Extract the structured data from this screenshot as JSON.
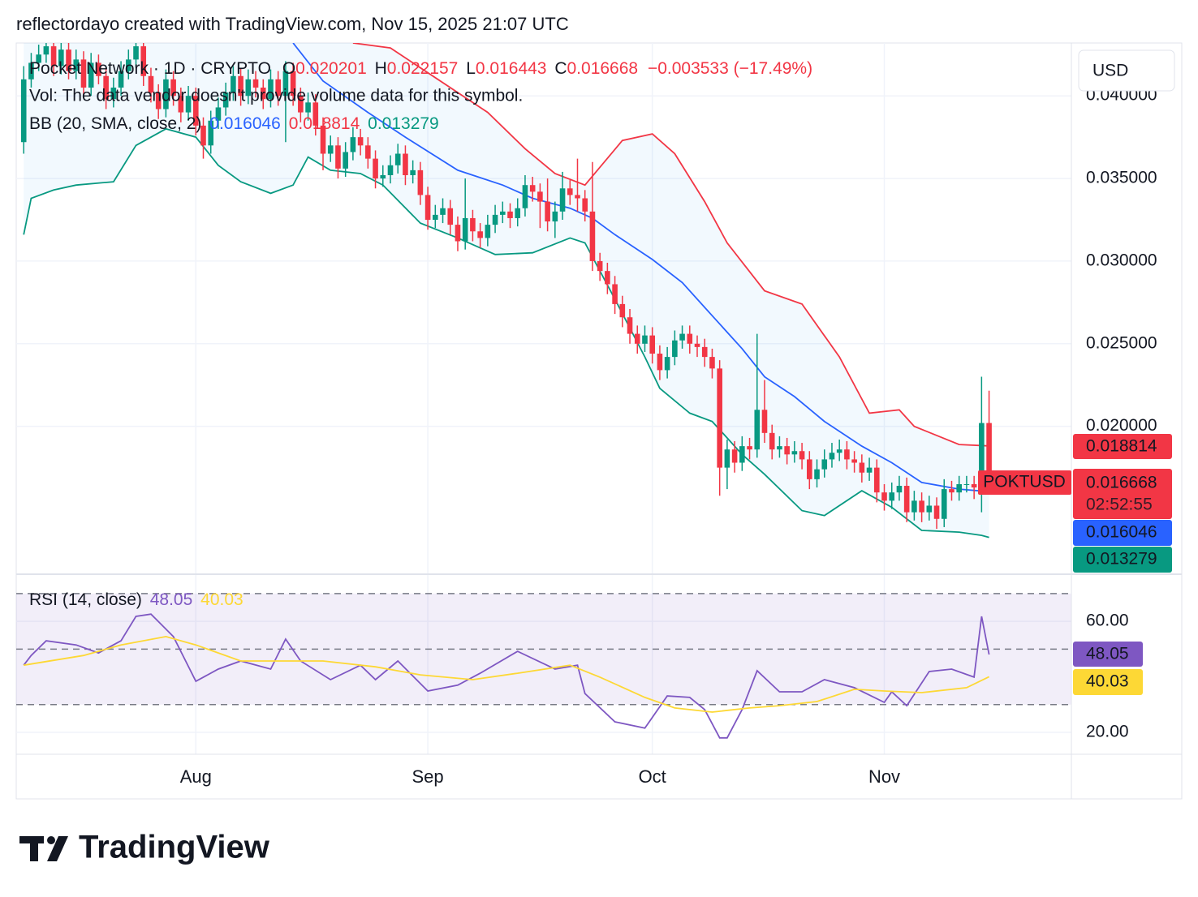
{
  "header": "reflectordayo created with TradingView.com, Nov 15, 2025 21:07 UTC",
  "footer": "TradingView",
  "chart_data": {
    "type": "candlestick",
    "title": "Pocket Network · 1D · CRYPTO",
    "ohlc_prefixes": [
      "O",
      "H",
      "L",
      "C"
    ],
    "change_label": "−0.003533 (−17.49%)",
    "volume_note": "Vol: The data vendor doesn't provide volume data for this symbol.",
    "currency": "USD",
    "symbol": "POKTUSD",
    "countdown": "02:52:55",
    "up_color": "#089981",
    "down_color": "#f23645",
    "grid": true,
    "xlim": [
      -1,
      140
    ],
    "xticks": [
      {
        "value": 23,
        "label": "Aug"
      },
      {
        "value": 54,
        "label": "Sep"
      },
      {
        "value": 84,
        "label": "Oct"
      },
      {
        "value": 115,
        "label": "Nov"
      }
    ],
    "ylim": [
      0.0111,
      0.0432
    ],
    "yticks": [
      {
        "value": 0.02,
        "label": "0.020000"
      },
      {
        "value": 0.025,
        "label": "0.025000"
      },
      {
        "value": 0.03,
        "label": "0.030000"
      },
      {
        "value": 0.035,
        "label": "0.035000"
      },
      {
        "value": 0.04,
        "label": "0.040000"
      }
    ],
    "candles": [
      [
        0.0372,
        0.0418,
        0.0365,
        0.041
      ],
      [
        0.041,
        0.0426,
        0.0405,
        0.042
      ],
      [
        0.042,
        0.0431,
        0.0415,
        0.0425
      ],
      [
        0.0425,
        0.0436,
        0.042,
        0.043
      ],
      [
        0.043,
        0.0435,
        0.0412,
        0.0418
      ],
      [
        0.0418,
        0.0434,
        0.0413,
        0.0428
      ],
      [
        0.0428,
        0.0433,
        0.041,
        0.0415
      ],
      [
        0.0415,
        0.0428,
        0.041,
        0.0422
      ],
      [
        0.0422,
        0.0427,
        0.0399,
        0.0405
      ],
      [
        0.0405,
        0.0426,
        0.04,
        0.042
      ],
      [
        0.042,
        0.0425,
        0.0407,
        0.0412
      ],
      [
        0.0412,
        0.0417,
        0.0392,
        0.0398
      ],
      [
        0.0398,
        0.0411,
        0.0393,
        0.0405
      ],
      [
        0.0405,
        0.0421,
        0.04,
        0.0415
      ],
      [
        0.0415,
        0.0428,
        0.041,
        0.0422
      ],
      [
        0.0422,
        0.0436,
        0.0417,
        0.043
      ],
      [
        0.043,
        0.0435,
        0.0406,
        0.0412
      ],
      [
        0.0412,
        0.0417,
        0.0396,
        0.0402
      ],
      [
        0.0402,
        0.0407,
        0.0386,
        0.0392
      ],
      [
        0.0392,
        0.0416,
        0.0387,
        0.041
      ],
      [
        0.041,
        0.0415,
        0.0394,
        0.04
      ],
      [
        0.04,
        0.0405,
        0.0384,
        0.039
      ],
      [
        0.039,
        0.0406,
        0.0385,
        0.04
      ],
      [
        0.04,
        0.0405,
        0.0376,
        0.0382
      ],
      [
        0.0382,
        0.0387,
        0.0362,
        0.037
      ],
      [
        0.037,
        0.0391,
        0.0365,
        0.0385
      ],
      [
        0.0385,
        0.0399,
        0.038,
        0.0393
      ],
      [
        0.0393,
        0.0408,
        0.0388,
        0.0402
      ],
      [
        0.0402,
        0.0418,
        0.0397,
        0.0412
      ],
      [
        0.0412,
        0.0417,
        0.0394,
        0.04
      ],
      [
        0.04,
        0.0416,
        0.0395,
        0.041
      ],
      [
        0.041,
        0.0415,
        0.0399,
        0.0405
      ],
      [
        0.0405,
        0.041,
        0.0392,
        0.0398
      ],
      [
        0.0398,
        0.0416,
        0.0393,
        0.041
      ],
      [
        0.041,
        0.0415,
        0.0394,
        0.04
      ],
      [
        0.04,
        0.0421,
        0.0372,
        0.0415
      ],
      [
        0.0415,
        0.042,
        0.0394,
        0.04
      ],
      [
        0.04,
        0.0405,
        0.0384,
        0.039
      ],
      [
        0.039,
        0.0402,
        0.0385,
        0.0396
      ],
      [
        0.0396,
        0.0401,
        0.0376,
        0.0382
      ],
      [
        0.0382,
        0.0387,
        0.0355,
        0.0365
      ],
      [
        0.0365,
        0.0376,
        0.036,
        0.037
      ],
      [
        0.037,
        0.0375,
        0.035,
        0.0356
      ],
      [
        0.0356,
        0.0372,
        0.0351,
        0.0366
      ],
      [
        0.0366,
        0.0381,
        0.0361,
        0.0375
      ],
      [
        0.0375,
        0.038,
        0.0364,
        0.037
      ],
      [
        0.037,
        0.0375,
        0.0356,
        0.0362
      ],
      [
        0.0362,
        0.0367,
        0.0344,
        0.035
      ],
      [
        0.035,
        0.0358,
        0.0345,
        0.0352
      ],
      [
        0.0352,
        0.0364,
        0.0347,
        0.0358
      ],
      [
        0.0358,
        0.0371,
        0.0353,
        0.0365
      ],
      [
        0.0365,
        0.037,
        0.0346,
        0.0352
      ],
      [
        0.0352,
        0.0361,
        0.0347,
        0.0355
      ],
      [
        0.0355,
        0.036,
        0.0334,
        0.034
      ],
      [
        0.034,
        0.0345,
        0.0319,
        0.0325
      ],
      [
        0.0325,
        0.0334,
        0.032,
        0.0328
      ],
      [
        0.0328,
        0.0338,
        0.0323,
        0.0332
      ],
      [
        0.0332,
        0.0337,
        0.0316,
        0.0322
      ],
      [
        0.0322,
        0.0327,
        0.0306,
        0.0312
      ],
      [
        0.0312,
        0.035,
        0.0307,
        0.0326
      ],
      [
        0.0326,
        0.0331,
        0.0312,
        0.0318
      ],
      [
        0.0318,
        0.0323,
        0.0308,
        0.0314
      ],
      [
        0.0314,
        0.0328,
        0.0309,
        0.0322
      ],
      [
        0.0322,
        0.0334,
        0.0317,
        0.0328
      ],
      [
        0.0328,
        0.0336,
        0.0323,
        0.033
      ],
      [
        0.033,
        0.0335,
        0.032,
        0.0326
      ],
      [
        0.0326,
        0.0338,
        0.0321,
        0.0332
      ],
      [
        0.0332,
        0.0352,
        0.0327,
        0.0346
      ],
      [
        0.0346,
        0.0351,
        0.0336,
        0.0342
      ],
      [
        0.0342,
        0.0347,
        0.032,
        0.0336
      ],
      [
        0.0336,
        0.035,
        0.0318,
        0.0324
      ],
      [
        0.0324,
        0.0336,
        0.0314,
        0.033
      ],
      [
        0.033,
        0.0354,
        0.0325,
        0.0344
      ],
      [
        0.0344,
        0.0349,
        0.0334,
        0.034
      ],
      [
        0.034,
        0.0362,
        0.033,
        0.0338
      ],
      [
        0.0338,
        0.0343,
        0.0324,
        0.033
      ],
      [
        0.033,
        0.036,
        0.0294,
        0.03
      ],
      [
        0.03,
        0.0305,
        0.0288,
        0.0294
      ],
      [
        0.0294,
        0.0299,
        0.028,
        0.0286
      ],
      [
        0.0286,
        0.0291,
        0.0268,
        0.0274
      ],
      [
        0.0274,
        0.0279,
        0.026,
        0.0266
      ],
      [
        0.0266,
        0.0271,
        0.025,
        0.0256
      ],
      [
        0.0256,
        0.0261,
        0.0244,
        0.025
      ],
      [
        0.025,
        0.0261,
        0.0245,
        0.0255
      ],
      [
        0.0255,
        0.026,
        0.0238,
        0.0244
      ],
      [
        0.0244,
        0.0249,
        0.0228,
        0.0234
      ],
      [
        0.0234,
        0.0248,
        0.0229,
        0.0242
      ],
      [
        0.0242,
        0.0258,
        0.0237,
        0.0252
      ],
      [
        0.0252,
        0.0261,
        0.0247,
        0.0256
      ],
      [
        0.0256,
        0.0261,
        0.0244,
        0.025
      ],
      [
        0.025,
        0.0255,
        0.0242,
        0.0248
      ],
      [
        0.0248,
        0.0253,
        0.0236,
        0.0242
      ],
      [
        0.0242,
        0.0247,
        0.0229,
        0.0235
      ],
      [
        0.0235,
        0.024,
        0.0158,
        0.0175
      ],
      [
        0.0175,
        0.0192,
        0.0162,
        0.0186
      ],
      [
        0.0186,
        0.0191,
        0.0172,
        0.0178
      ],
      [
        0.0178,
        0.0194,
        0.0173,
        0.0188
      ],
      [
        0.0188,
        0.0193,
        0.018,
        0.0186
      ],
      [
        0.0186,
        0.0256,
        0.0181,
        0.021
      ],
      [
        0.021,
        0.0228,
        0.019,
        0.0196
      ],
      [
        0.0196,
        0.0201,
        0.018,
        0.0186
      ],
      [
        0.0186,
        0.0194,
        0.0181,
        0.0188
      ],
      [
        0.0188,
        0.0193,
        0.0177,
        0.0183
      ],
      [
        0.0183,
        0.0191,
        0.0178,
        0.0185
      ],
      [
        0.0185,
        0.019,
        0.0174,
        0.018
      ],
      [
        0.018,
        0.0185,
        0.0162,
        0.0168
      ],
      [
        0.0168,
        0.018,
        0.0163,
        0.0174
      ],
      [
        0.0174,
        0.0186,
        0.0169,
        0.018
      ],
      [
        0.018,
        0.019,
        0.0175,
        0.0184
      ],
      [
        0.0184,
        0.0192,
        0.0179,
        0.0186
      ],
      [
        0.0186,
        0.0191,
        0.0174,
        0.018
      ],
      [
        0.018,
        0.0185,
        0.0172,
        0.0178
      ],
      [
        0.0178,
        0.0183,
        0.0166,
        0.0172
      ],
      [
        0.0172,
        0.0181,
        0.0167,
        0.0175
      ],
      [
        0.0175,
        0.018,
        0.0154,
        0.016
      ],
      [
        0.016,
        0.0165,
        0.0149,
        0.0155
      ],
      [
        0.0155,
        0.0166,
        0.015,
        0.016
      ],
      [
        0.016,
        0.017,
        0.0155,
        0.0164
      ],
      [
        0.0164,
        0.0169,
        0.0142,
        0.0148
      ],
      [
        0.0148,
        0.0161,
        0.0143,
        0.0155
      ],
      [
        0.0155,
        0.016,
        0.0142,
        0.0148
      ],
      [
        0.0148,
        0.0158,
        0.0143,
        0.0152
      ],
      [
        0.0152,
        0.0157,
        0.0138,
        0.0144
      ],
      [
        0.0144,
        0.0168,
        0.0139,
        0.0162
      ],
      [
        0.0162,
        0.0167,
        0.0155,
        0.016
      ],
      [
        0.016,
        0.017,
        0.0155,
        0.0165
      ],
      [
        0.0165,
        0.017,
        0.016,
        0.0165
      ],
      [
        0.0165,
        0.017,
        0.0156,
        0.0163
      ],
      [
        0.0163,
        0.023,
        0.0148,
        0.0202
      ],
      [
        0.020201,
        0.022157,
        0.016443,
        0.016668
      ]
    ],
    "bollinger": {
      "label": "BB (20, SMA, close, 2)",
      "fill": "#2196f3",
      "series": [
        {
          "color": "#2962ff",
          "x": [
            36,
            40,
            46,
            51,
            58,
            64,
            68,
            73,
            76,
            79,
            84,
            88,
            92,
            96,
            99,
            103,
            107,
            112,
            116,
            120,
            125,
            129
          ],
          "values": [
            0.0432,
            0.0409,
            0.039,
            0.0375,
            0.0355,
            0.0346,
            0.0338,
            0.0332,
            0.0326,
            0.0316,
            0.0301,
            0.0287,
            0.0267,
            0.0247,
            0.023,
            0.0218,
            0.0203,
            0.0188,
            0.0178,
            0.0166,
            0.0162,
            0.016046
          ]
        },
        {
          "color": "#f23645",
          "x": [
            44,
            49,
            62,
            67,
            71,
            75,
            80,
            84,
            87,
            91,
            94,
            99,
            104,
            109,
            113,
            117,
            119,
            125,
            129
          ],
          "values": [
            0.0432,
            0.0429,
            0.039,
            0.0368,
            0.0353,
            0.0346,
            0.0373,
            0.0377,
            0.0365,
            0.0336,
            0.0311,
            0.0282,
            0.0274,
            0.0242,
            0.0208,
            0.021,
            0.02,
            0.0189,
            0.018814
          ]
        },
        {
          "color": "#089981",
          "x": [
            0,
            1,
            4,
            7,
            12,
            15,
            19,
            23,
            26,
            29,
            33,
            36,
            38,
            41,
            45,
            48,
            53,
            58,
            63,
            68,
            73,
            75,
            79,
            83,
            85,
            89,
            92,
            96,
            99,
            104,
            107,
            112,
            116,
            120,
            125,
            128,
            129
          ],
          "values": [
            0.0316,
            0.0338,
            0.0343,
            0.0346,
            0.0348,
            0.037,
            0.038,
            0.0375,
            0.0358,
            0.0348,
            0.0341,
            0.0346,
            0.0363,
            0.0355,
            0.0353,
            0.0346,
            0.0323,
            0.0314,
            0.0304,
            0.0305,
            0.0314,
            0.0311,
            0.0277,
            0.0242,
            0.0223,
            0.0208,
            0.0203,
            0.0183,
            0.0171,
            0.0149,
            0.0146,
            0.0161,
            0.0151,
            0.0137,
            0.0136,
            0.0134,
            0.013279
          ]
        }
      ]
    },
    "rsi": {
      "label": "RSI (14, close)",
      "ylim": [
        12.1,
        76.4
      ],
      "yticks": [
        {
          "value": 20,
          "label": "20.00"
        },
        {
          "value": 60,
          "label": "60.00"
        }
      ],
      "levels": [
        70,
        50,
        30
      ],
      "band_color": "#7e57c2",
      "series": [
        {
          "color": "#7e57c2",
          "x": [
            0,
            1,
            3,
            7,
            10,
            13,
            15,
            17,
            20,
            23,
            26,
            29,
            33,
            35,
            37,
            41,
            45,
            47,
            50,
            54,
            58,
            61,
            66,
            71,
            74,
            75,
            79,
            83,
            86,
            89,
            91,
            93,
            94,
            96,
            98,
            101,
            104,
            107,
            111,
            115,
            116,
            118,
            121,
            124,
            127,
            128,
            129
          ],
          "values": [
            44.2,
            47.7,
            53,
            51.5,
            48.6,
            53,
            61.8,
            62.6,
            54.5,
            38.4,
            42.8,
            45.7,
            42.8,
            53.6,
            45.7,
            39,
            44.2,
            39,
            45.7,
            34.9,
            37,
            41.3,
            49.2,
            42.8,
            44.2,
            34,
            23.8,
            21.5,
            33.1,
            32.6,
            28.2,
            18,
            18,
            28.2,
            42.2,
            34.6,
            34.6,
            39,
            36.1,
            30.8,
            34.6,
            29.6,
            41.9,
            42.8,
            39.9,
            61.8,
            48.05
          ]
        },
        {
          "color": "#fdd835",
          "x": [
            0,
            8,
            13,
            19,
            23,
            29,
            40,
            47,
            53,
            60,
            66,
            73,
            77,
            83,
            87,
            92,
            97,
            101,
            106,
            111,
            115,
            120,
            126,
            129
          ],
          "values": [
            44.2,
            47.7,
            51.5,
            54.5,
            51.5,
            45.7,
            45.7,
            43.6,
            40.7,
            39,
            41.3,
            44.2,
            39.9,
            32.6,
            28.8,
            27.3,
            28.8,
            29.6,
            31.1,
            35.5,
            34.9,
            34.3,
            36.1,
            40.03
          ]
        }
      ]
    }
  }
}
